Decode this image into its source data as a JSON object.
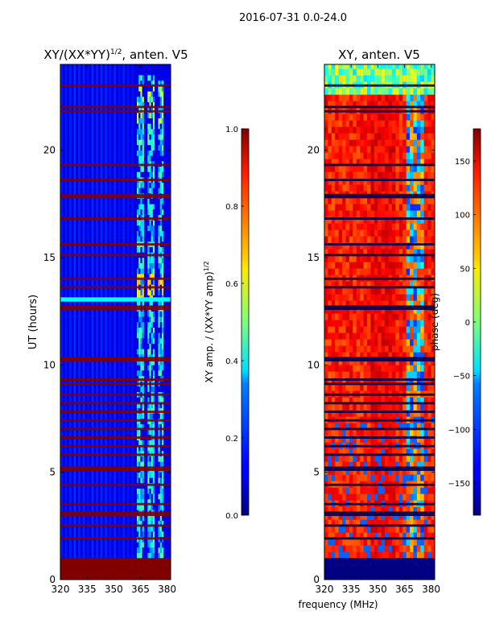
{
  "suptitle": "2016-07-31 0.0-24.0",
  "shared_xlabel": "frequency (MHz)",
  "colors": {
    "background": "#ffffff",
    "jet_low": "#00007f",
    "jet_high": "#7f0000"
  },
  "chart_data": [
    {
      "type": "heatmap",
      "title": "XY/(XX*YY)",
      "title_sup": "1/2",
      "title_suffix": ", anten. V5",
      "xlabel": "",
      "ylabel": "UT (hours)",
      "xlim": [
        320,
        382
      ],
      "ylim": [
        0,
        24
      ],
      "xticks": [
        320,
        335,
        350,
        365,
        380
      ],
      "yticks": [
        0,
        5,
        10,
        15,
        20
      ],
      "colorbar": {
        "label": "XY amp. / (XX*YY amp)",
        "label_sup": "1/2",
        "range": [
          0.0,
          1.0
        ],
        "ticks": [
          "0.0",
          "0.2",
          "0.4",
          "0.6",
          "0.8",
          "1.0"
        ]
      },
      "description_values": {
        "flagged_bottom_hours": [
          0,
          1
        ],
        "background_level": 0.1,
        "bright_band_freqs": [
          [
            363,
            367
          ],
          [
            369,
            373
          ],
          [
            375,
            378
          ]
        ]
      }
    },
    {
      "type": "heatmap",
      "title": "XY, anten. V5",
      "xlabel": "",
      "ylabel": "",
      "xlim": [
        320,
        382
      ],
      "ylim": [
        0,
        24
      ],
      "xticks": [
        320,
        335,
        350,
        365,
        380
      ],
      "yticks": [
        0,
        5,
        10,
        15,
        20
      ],
      "colorbar": {
        "label": "phase (deg)",
        "range": [
          -180,
          180
        ],
        "ticks": [
          "−150",
          "−100",
          "−50",
          "0",
          "50",
          "100",
          "150"
        ],
        "tick_values": [
          -150,
          -100,
          -50,
          0,
          50,
          100,
          150
        ]
      },
      "description_values": {
        "flagged_bottom_hours": [
          0,
          1
        ],
        "typical_phase_deg": 120
      }
    }
  ]
}
